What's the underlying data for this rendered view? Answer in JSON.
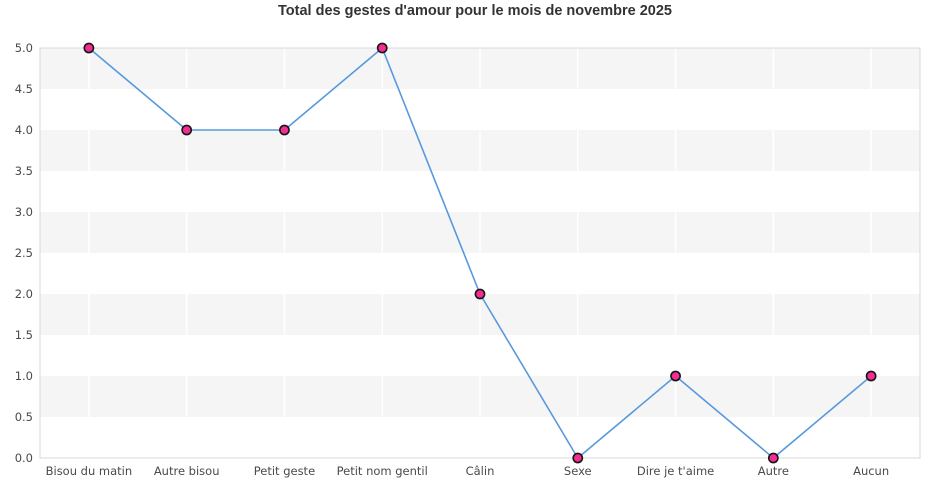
{
  "chart_data": {
    "type": "line",
    "title": "Total des gestes d'amour pour le mois de novembre 2025",
    "categories": [
      "Bisou du matin",
      "Autre bisou",
      "Petit geste",
      "Petit nom gentil",
      "Câlin",
      "Sexe",
      "Dire je t'aime",
      "Autre",
      "Aucun"
    ],
    "values": [
      5,
      4,
      4,
      5,
      2,
      0,
      1,
      0,
      1
    ],
    "xlabel": "",
    "ylabel": "",
    "ylim": [
      0,
      5
    ],
    "ytick_step": 0.5,
    "yticks": [
      "5.0",
      "4.5",
      "4.0",
      "3.5",
      "3.0",
      "2.5",
      "2.0",
      "1.5",
      "1.0",
      "0.5",
      "0.0"
    ],
    "legend": "none",
    "grid": "alternating horizontal bands + white vertical lines at category centers",
    "colors": {
      "line": "#5899dd",
      "marker_fill": "#f42d92",
      "marker_stroke": "#161616",
      "band": "#f5f5f5",
      "plot_border": "#d8d8d8",
      "tick_label": "#4a4a4a",
      "title": "#333333",
      "background": "#ffffff"
    }
  }
}
